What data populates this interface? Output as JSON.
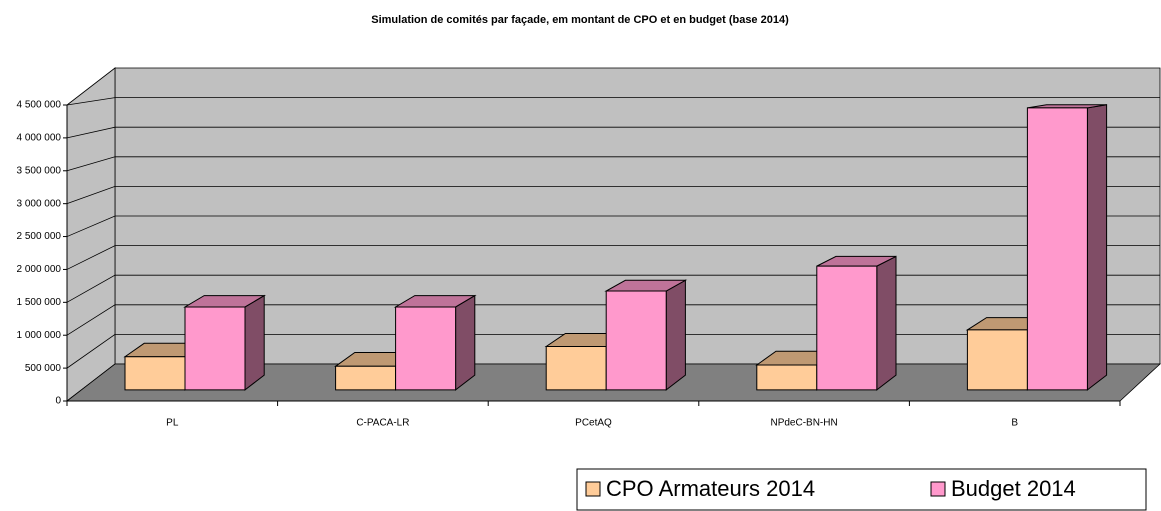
{
  "chart_data": {
    "type": "bar3d",
    "title": "Simulation de comités par façade, em montant de CPO et en budget (base 2014)",
    "categories": [
      "PL",
      "C-PACA-LR",
      "PCetAQ",
      "NPdeC-BN-HN",
      "B"
    ],
    "series": [
      {
        "name": "CPO Armateurs 2014",
        "color": "#ffcc99",
        "values": [
          520000,
          370000,
          680000,
          390000,
          940000
        ]
      },
      {
        "name": "Budget 2014",
        "color": "#ff99cc",
        "values": [
          1300000,
          1300000,
          1550000,
          1940000,
          4420000
        ]
      }
    ],
    "ylim": [
      0,
      4500000
    ],
    "yticks": [
      0,
      {
        "value": 500000,
        "label": "500 000"
      },
      {
        "value": 1000000,
        "label": "1 000 000"
      },
      {
        "value": 1500000,
        "label": "1 500 000"
      },
      {
        "value": 2000000,
        "label": "2 000 000"
      },
      {
        "value": 2500000,
        "label": "2 500 000"
      },
      {
        "value": 3000000,
        "label": "3 000 000"
      },
      {
        "value": 3500000,
        "label": "3 500 000"
      },
      {
        "value": 4000000,
        "label": "4 000 000"
      },
      {
        "value": 4500000,
        "label": "4 500 000"
      }
    ],
    "grid": true,
    "legend": "bottom-right"
  }
}
